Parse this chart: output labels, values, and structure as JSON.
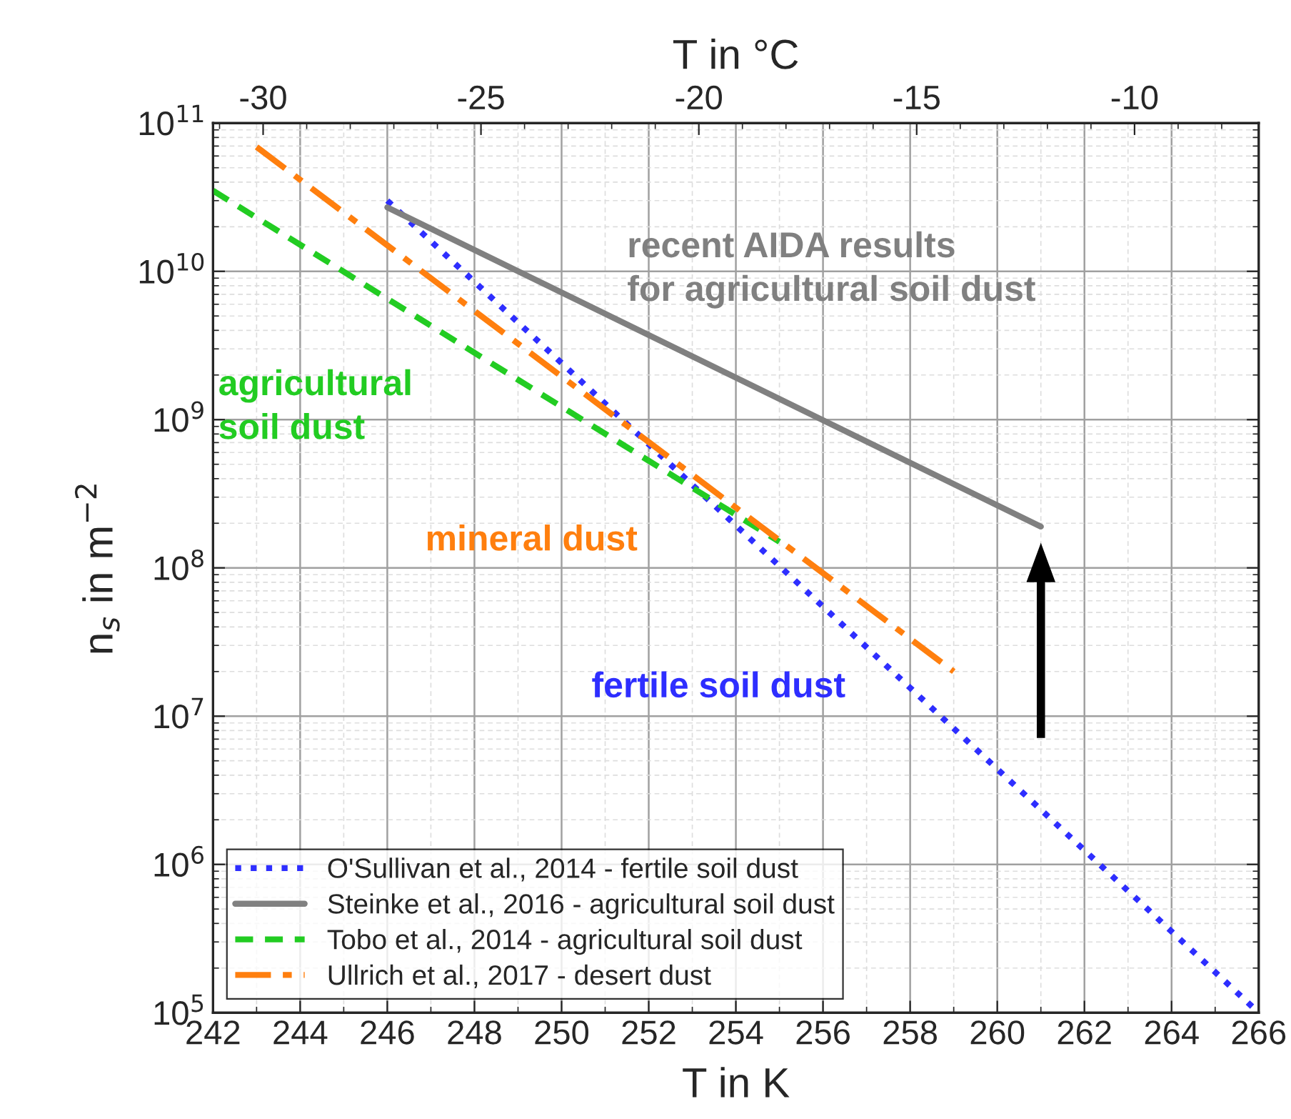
{
  "chart_data": {
    "type": "line",
    "xlabel": "T in K",
    "ylabel": "n$_{s}$ in m$^{−2}$",
    "x2label": "T in °C",
    "log": "y",
    "grid": true,
    "legend": "bottom left",
    "xlim": [
      242,
      266
    ],
    "xticks": [
      242,
      244,
      246,
      248,
      250,
      252,
      254,
      256,
      258,
      260,
      262,
      264,
      266
    ],
    "x2lim": [
      -31.15,
      -7.15
    ],
    "x2ticks": [
      -30,
      -25,
      -20,
      -15,
      -10
    ],
    "ylim": [
      100000.0,
      100000000000.0
    ],
    "yticks": [
      {
        "value": 100000.0,
        "label": "10$^{5}$"
      },
      {
        "value": 1000000.0,
        "label": "10$^{6}$"
      },
      {
        "value": 10000000.0,
        "label": "10$^{7}$"
      },
      {
        "value": 100000000.0,
        "label": "10$^{8}$"
      },
      {
        "value": 1000000000.0,
        "label": "10$^{9}$"
      },
      {
        "value": 10000000000.0,
        "label": "10$^{10}$"
      },
      {
        "value": 100000000000.0,
        "label": "10$^{11}$"
      }
    ],
    "series": [
      {
        "name": "O'Sullivan et al., 2014 - fertile soil dust",
        "color": "#2e2eff",
        "line_style": "dotted",
        "x": [
          246,
          266
        ],
        "values": [
          30000000000.0,
          100000.0
        ]
      },
      {
        "name": "Steinke et al., 2016 - agricultural soil dust",
        "color": "#808080",
        "line_style": "solid",
        "x": [
          246,
          261
        ],
        "values": [
          27000000000.0,
          190000000.0
        ]
      },
      {
        "name": "Tobo et al., 2014 - agricultural soil dust",
        "color": "#22cc22",
        "line_style": "dashed",
        "x": [
          242,
          255
        ],
        "values": [
          35000000000.0,
          150000000.0
        ]
      },
      {
        "name": "Ullrich et al., 2017 - desert dust",
        "color": "#ff7f0e",
        "line_style": "dashdot",
        "x": [
          243,
          259
        ],
        "values": [
          69000000000.0,
          20000000.0
        ]
      }
    ],
    "annotations": [
      "recent AIDA results\nfor agricultural soil dust",
      "agricultural\nsoil dust",
      "mineral dust",
      "fertile soil dust"
    ]
  }
}
